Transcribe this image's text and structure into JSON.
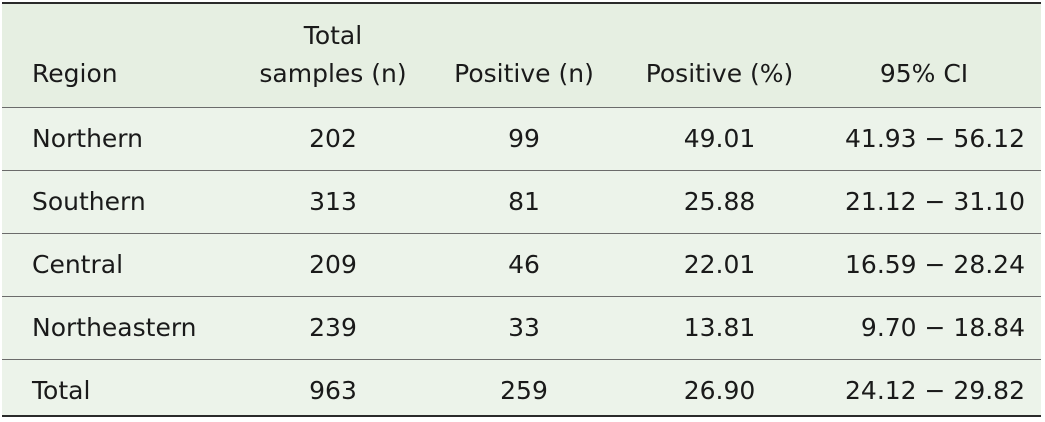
{
  "table": {
    "headers": {
      "region": "Region",
      "total_line1": "Total",
      "total_line2": "samples (n)",
      "positive_n": "Positive (n)",
      "positive_pct": "Positive (%)",
      "ci": "95% CI"
    },
    "rows": [
      {
        "region": "Northern",
        "total": "202",
        "positive_n": "99",
        "positive_pct": "49.01",
        "ci": "41.93 − 56.12"
      },
      {
        "region": "Southern",
        "total": "313",
        "positive_n": "81",
        "positive_pct": "25.88",
        "ci": "21.12 − 31.10"
      },
      {
        "region": "Central",
        "total": "209",
        "positive_n": "46",
        "positive_pct": "22.01",
        "ci": "16.59 − 28.24"
      },
      {
        "region": "Northeastern",
        "total": "239",
        "positive_n": "33",
        "positive_pct": "13.81",
        "ci": "9.70 − 18.84"
      },
      {
        "region": "Total",
        "total": "963",
        "positive_n": "259",
        "positive_pct": "26.90",
        "ci": "24.12 − 29.82"
      }
    ]
  }
}
